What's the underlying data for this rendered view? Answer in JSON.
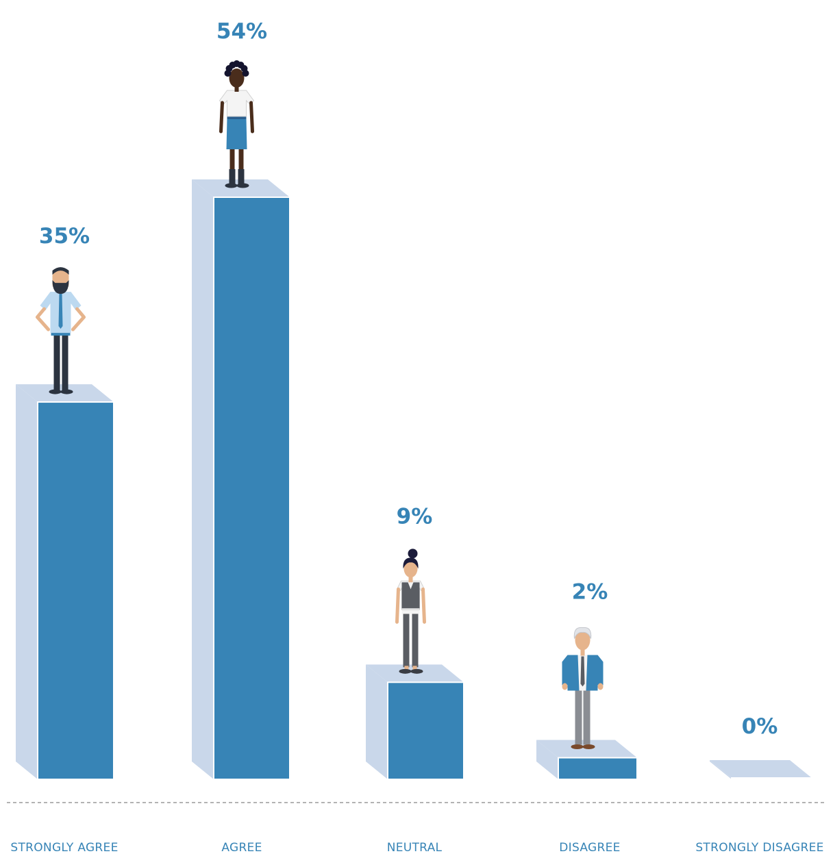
{
  "chart_data": {
    "type": "bar",
    "categories": [
      "STRONGLY AGREE",
      "AGREE",
      "NEUTRAL",
      "DISAGREE",
      "STRONGLY DISAGREE"
    ],
    "values": [
      35,
      54,
      9,
      2,
      0
    ],
    "value_labels": [
      "35%",
      "54%",
      "9%",
      "2%",
      "0%"
    ],
    "unit": "%",
    "ylim": [
      0,
      54
    ],
    "grid": false,
    "legend": "none",
    "baseline": "dashed"
  },
  "colors": {
    "bar_front": "#3784b6",
    "bar_side": "#c9d7ea",
    "bar_top": "#c9d7ea",
    "value_text": "#3784b6",
    "category_text": "#3784b6",
    "baseline": "#9a9a9a"
  },
  "figures": [
    {
      "icon": "bearded-man-figure-icon"
    },
    {
      "icon": "woman-white-shirt-blue-skirt-figure-icon"
    },
    {
      "icon": "woman-grey-vest-figure-icon"
    },
    {
      "icon": "grey-haired-man-blue-suit-figure-icon"
    },
    {
      "icon": "none"
    }
  ]
}
